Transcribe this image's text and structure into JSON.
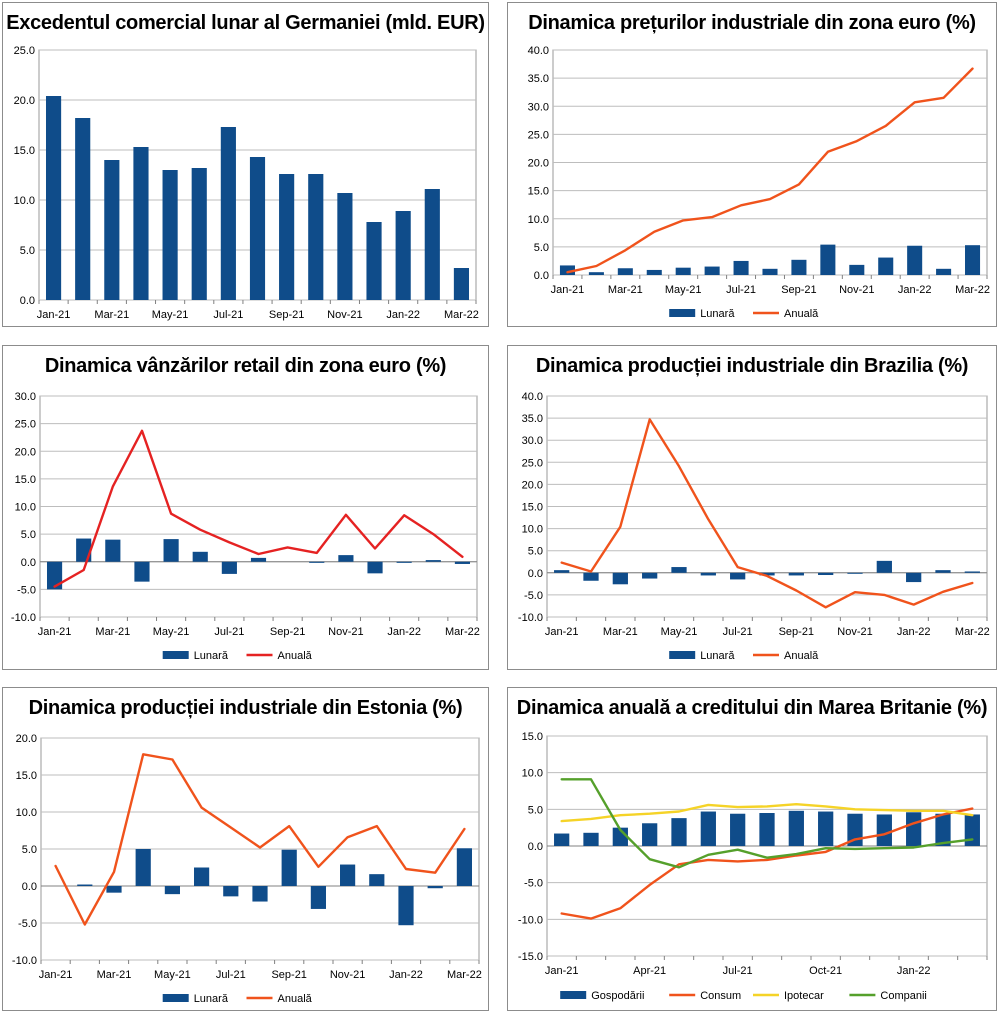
{
  "colors": {
    "bar": "#0f4c8a",
    "orange": "#f0531c",
    "red": "#e52222",
    "yellow": "#f5d327",
    "green": "#55a02b",
    "grid": "#bdbdbd"
  },
  "chart_data": [
    {
      "type": "bar",
      "title": "Excedentul comercial lunar al Germaniei (mld. EUR)",
      "categories": [
        "Jan-21",
        "Feb-21",
        "Mar-21",
        "Apr-21",
        "May-21",
        "Jun-21",
        "Jul-21",
        "Aug-21",
        "Sep-21",
        "Oct-21",
        "Nov-21",
        "Dec-21",
        "Jan-22",
        "Feb-22",
        "Mar-22"
      ],
      "x_tick_labels": [
        "Jan-21",
        "Mar-21",
        "May-21",
        "Jul-21",
        "Sep-21",
        "Nov-21",
        "Jan-22",
        "Mar-22"
      ],
      "y_tick_labels": [
        "25.0",
        "20.0",
        "15.0",
        "10.0",
        "5.0",
        "0.0"
      ],
      "ylim": [
        0,
        25
      ],
      "series": [
        {
          "name": "Excedent",
          "kind": "bar",
          "color": "bar",
          "values": [
            20.4,
            18.2,
            14.0,
            15.3,
            13.0,
            13.2,
            17.3,
            14.3,
            12.6,
            12.6,
            10.7,
            7.8,
            8.9,
            11.1,
            3.2
          ]
        }
      ],
      "legend": []
    },
    {
      "type": "bar+line",
      "title": "Dinamica prețurilor industriale din zona euro (%)",
      "categories": [
        "Jan-21",
        "Feb-21",
        "Mar-21",
        "Apr-21",
        "May-21",
        "Jun-21",
        "Jul-21",
        "Aug-21",
        "Sep-21",
        "Oct-21",
        "Nov-21",
        "Dec-21",
        "Jan-22",
        "Feb-22",
        "Mar-22"
      ],
      "x_tick_labels": [
        "Jan-21",
        "Mar-21",
        "May-21",
        "Jul-21",
        "Sep-21",
        "Nov-21",
        "Jan-22",
        "Mar-22"
      ],
      "y_tick_labels": [
        "40.0",
        "35.0",
        "30.0",
        "25.0",
        "20.0",
        "15.0",
        "10.0",
        "5.0",
        "0.0"
      ],
      "ylim": [
        0,
        40
      ],
      "series": [
        {
          "name": "Lunară",
          "kind": "bar",
          "color": "bar",
          "values": [
            1.7,
            0.5,
            1.2,
            0.9,
            1.3,
            1.5,
            2.5,
            1.1,
            2.7,
            5.4,
            1.8,
            3.1,
            5.2,
            1.1,
            5.3
          ]
        },
        {
          "name": "Anuală",
          "kind": "line",
          "color": "orange",
          "values": [
            0.5,
            1.6,
            4.4,
            7.7,
            9.7,
            10.3,
            12.4,
            13.5,
            16.1,
            21.9,
            23.8,
            26.5,
            30.7,
            31.5,
            36.7
          ]
        }
      ],
      "legend": [
        "Lunară",
        "Anuală"
      ]
    },
    {
      "type": "bar+line",
      "title": "Dinamica vânzărilor retail din zona euro (%)",
      "categories": [
        "Jan-21",
        "Feb-21",
        "Mar-21",
        "Apr-21",
        "May-21",
        "Jun-21",
        "Jul-21",
        "Aug-21",
        "Sep-21",
        "Oct-21",
        "Nov-21",
        "Dec-21",
        "Jan-22",
        "Feb-22",
        "Mar-22"
      ],
      "x_tick_labels": [
        "Jan-21",
        "Mar-21",
        "May-21",
        "Jul-21",
        "Sep-21",
        "Nov-21",
        "Jan-22",
        "Mar-22"
      ],
      "y_tick_labels": [
        "30.0",
        "25.0",
        "20.0",
        "15.0",
        "10.0",
        "5.0",
        "0.0",
        "-5.0",
        "-10.0"
      ],
      "ylim": [
        -10,
        30
      ],
      "series": [
        {
          "name": "Lunară",
          "kind": "bar",
          "color": "bar",
          "values": [
            -5.0,
            4.2,
            4.0,
            -3.6,
            4.1,
            1.8,
            -2.2,
            0.7,
            0.0,
            -0.2,
            1.2,
            -2.1,
            -0.2,
            0.3,
            -0.4
          ]
        },
        {
          "name": "Anuală",
          "kind": "line",
          "color": "red",
          "values": [
            -4.5,
            -1.5,
            13.6,
            23.7,
            8.7,
            5.8,
            3.5,
            1.4,
            2.6,
            1.6,
            8.5,
            2.4,
            8.4,
            5.0,
            0.9
          ]
        }
      ],
      "legend": [
        "Lunară",
        "Anuală"
      ]
    },
    {
      "type": "bar+line",
      "title": "Dinamica producției industriale din Brazilia (%)",
      "categories": [
        "Jan-21",
        "Feb-21",
        "Mar-21",
        "Apr-21",
        "May-21",
        "Jun-21",
        "Jul-21",
        "Aug-21",
        "Sep-21",
        "Oct-21",
        "Nov-21",
        "Dec-21",
        "Jan-22",
        "Feb-22",
        "Mar-22"
      ],
      "x_tick_labels": [
        "Jan-21",
        "Mar-21",
        "May-21",
        "Jul-21",
        "Sep-21",
        "Nov-21",
        "Jan-22",
        "Mar-22"
      ],
      "y_tick_labels": [
        "40.0",
        "35.0",
        "30.0",
        "25.0",
        "20.0",
        "15.0",
        "10.0",
        "5.0",
        "0.0",
        "-5.0",
        "-10.0"
      ],
      "ylim": [
        -10,
        40
      ],
      "series": [
        {
          "name": "Lunară",
          "kind": "bar",
          "color": "bar",
          "values": [
            0.6,
            -1.8,
            -2.6,
            -1.3,
            1.3,
            -0.6,
            -1.5,
            -0.6,
            -0.6,
            -0.5,
            -0.1,
            2.7,
            -2.1,
            0.6,
            0.3
          ]
        },
        {
          "name": "Anuală",
          "kind": "line",
          "color": "orange",
          "values": [
            2.3,
            0.3,
            10.4,
            34.7,
            24.1,
            12.1,
            1.3,
            -0.7,
            -4.0,
            -7.8,
            -4.4,
            -5.0,
            -7.2,
            -4.3,
            -2.3
          ]
        }
      ],
      "legend": [
        "Lunară",
        "Anuală"
      ]
    },
    {
      "type": "bar+line",
      "title": "Dinamica producției industriale din Estonia (%)",
      "categories": [
        "Jan-21",
        "Feb-21",
        "Mar-21",
        "Apr-21",
        "May-21",
        "Jun-21",
        "Jul-21",
        "Aug-21",
        "Sep-21",
        "Oct-21",
        "Nov-21",
        "Dec-21",
        "Jan-22",
        "Feb-22",
        "Mar-22"
      ],
      "x_tick_labels": [
        "Jan-21",
        "Mar-21",
        "May-21",
        "Jul-21",
        "Sep-21",
        "Nov-21",
        "Jan-22",
        "Mar-22"
      ],
      "y_tick_labels": [
        "20.0",
        "15.0",
        "10.0",
        "5.0",
        "0.0",
        "-5.0",
        "-10.0"
      ],
      "ylim": [
        -10,
        20
      ],
      "series": [
        {
          "name": "Lunară",
          "kind": "bar",
          "color": "bar",
          "values": [
            0.0,
            0.2,
            -0.9,
            5.0,
            -1.1,
            2.5,
            -1.4,
            -2.1,
            4.9,
            -3.1,
            2.9,
            1.6,
            -5.3,
            -0.3,
            5.1
          ]
        },
        {
          "name": "Anuală",
          "kind": "line",
          "color": "orange",
          "values": [
            2.7,
            -5.2,
            1.9,
            17.8,
            17.1,
            10.6,
            7.9,
            5.2,
            8.1,
            2.6,
            6.6,
            8.1,
            2.3,
            1.8,
            7.7
          ]
        }
      ],
      "legend": [
        "Lunară",
        "Anuală"
      ]
    },
    {
      "type": "bar+line",
      "title": "Dinamica anuală a creditului din Marea Britanie (%)",
      "categories": [
        "Jan-21",
        "Feb-21",
        "Mar-21",
        "Apr-21",
        "May-21",
        "Jun-21",
        "Jul-21",
        "Aug-21",
        "Sep-21",
        "Oct-21",
        "Nov-21",
        "Dec-21",
        "Jan-22",
        "Feb-22",
        "Mar-22"
      ],
      "x_tick_labels": [
        "Jan-21",
        "Apr-21",
        "Jul-21",
        "Oct-21",
        "Jan-22"
      ],
      "y_tick_labels": [
        "15.0",
        "10.0",
        "5.0",
        "0.0",
        "-5.0",
        "-10.0",
        "-15.0"
      ],
      "ylim": [
        -15,
        15
      ],
      "series": [
        {
          "name": "Gospodării",
          "kind": "bar",
          "color": "bar",
          "values": [
            1.7,
            1.8,
            2.5,
            3.1,
            3.8,
            4.7,
            4.4,
            4.5,
            4.8,
            4.7,
            4.4,
            4.3,
            4.6,
            4.4,
            4.3
          ]
        },
        {
          "name": "Consum",
          "kind": "line",
          "color": "orange",
          "values": [
            -9.2,
            -9.9,
            -8.5,
            -5.3,
            -2.5,
            -1.9,
            -2.1,
            -1.9,
            -1.3,
            -0.8,
            0.9,
            1.6,
            3.1,
            4.3,
            5.1
          ]
        },
        {
          "name": "Ipotecar",
          "kind": "line",
          "color": "yellow",
          "values": [
            3.4,
            3.7,
            4.2,
            4.4,
            4.7,
            5.6,
            5.3,
            5.4,
            5.7,
            5.4,
            5.0,
            4.9,
            4.8,
            4.8,
            4.2
          ]
        },
        {
          "name": "Companii",
          "kind": "line",
          "color": "green",
          "values": [
            9.1,
            9.1,
            2.2,
            -1.8,
            -2.9,
            -1.2,
            -0.5,
            -1.6,
            -1.1,
            -0.3,
            -0.4,
            -0.3,
            -0.2,
            0.4,
            0.9
          ]
        }
      ],
      "legend": [
        "Gospodării",
        "Consum",
        "Ipotecar",
        "Companii"
      ]
    }
  ]
}
